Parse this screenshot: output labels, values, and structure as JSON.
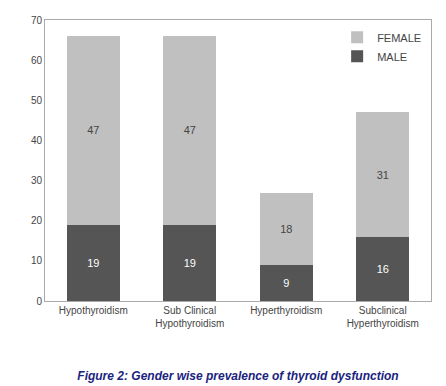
{
  "chart_data": {
    "type": "bar",
    "stacked": true,
    "title": "Figure 2: Gender wise prevalence of thyroid dysfunction",
    "categories": [
      "Hypothyroidism",
      "Sub Clinical\nHypothyroidism",
      "Hyperthyroidism",
      "Subclinical\nHyperthyroidism"
    ],
    "series": [
      {
        "name": "MALE",
        "color": "#555555",
        "values": [
          19,
          19,
          9,
          16
        ]
      },
      {
        "name": "FEMALE",
        "color": "#c0c0c0",
        "values": [
          47,
          47,
          18,
          31
        ]
      }
    ],
    "ylim": [
      0,
      70
    ],
    "yticks": [
      0,
      10,
      20,
      30,
      40,
      50,
      60,
      70
    ],
    "grid": false,
    "legend": "upper right",
    "data_labels": true
  }
}
